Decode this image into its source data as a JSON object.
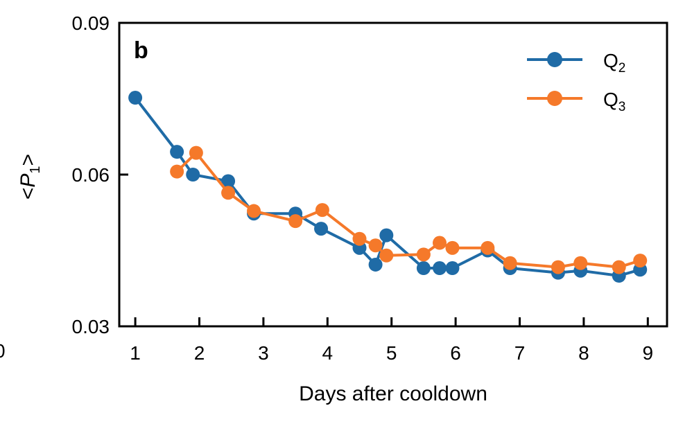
{
  "chart_data": {
    "type": "line",
    "panel_label": "b",
    "xlabel": "Days after cooldown",
    "ylabel": {
      "prefix": "<",
      "var": "P",
      "sub": "1",
      "suffix": ">"
    },
    "xlim": [
      0.75,
      9.3
    ],
    "ylim": [
      0.03,
      0.09
    ],
    "xticks": [
      1,
      2,
      3,
      4,
      5,
      6,
      7,
      8,
      9
    ],
    "xtick_labels": [
      "1",
      "2",
      "3",
      "4",
      "5",
      "6",
      "7",
      "8",
      "9"
    ],
    "yticks": [
      0.03,
      0.06,
      0.09
    ],
    "ytick_labels": [
      "0.03",
      "0.06",
      "0.09"
    ],
    "edge_fragment": "0",
    "grid": false,
    "legend_position": "top-right",
    "series": [
      {
        "name": "Q",
        "name_sub": "2",
        "color": "#1f6ba6",
        "x": [
          1.0,
          1.65,
          1.9,
          2.45,
          2.85,
          3.5,
          3.9,
          4.5,
          4.75,
          4.92,
          5.5,
          5.75,
          5.95,
          6.5,
          6.85,
          7.6,
          7.95,
          8.55,
          8.88
        ],
        "y": [
          0.0752,
          0.0645,
          0.06,
          0.0587,
          0.0523,
          0.0523,
          0.0493,
          0.0455,
          0.0422,
          0.048,
          0.0415,
          0.0415,
          0.0415,
          0.045,
          0.0415,
          0.0406,
          0.041,
          0.04,
          0.0412
        ]
      },
      {
        "name": "Q",
        "name_sub": "3",
        "color": "#f5792a",
        "x": [
          1.65,
          1.95,
          2.45,
          2.85,
          3.5,
          3.92,
          4.5,
          4.75,
          4.92,
          5.5,
          5.75,
          5.95,
          6.5,
          6.85,
          7.6,
          7.95,
          8.55,
          8.88
        ],
        "y": [
          0.0606,
          0.0643,
          0.0564,
          0.0528,
          0.0508,
          0.053,
          0.0473,
          0.046,
          0.044,
          0.0442,
          0.0465,
          0.0455,
          0.0455,
          0.0425,
          0.0417,
          0.0425,
          0.0417,
          0.043
        ]
      }
    ]
  }
}
